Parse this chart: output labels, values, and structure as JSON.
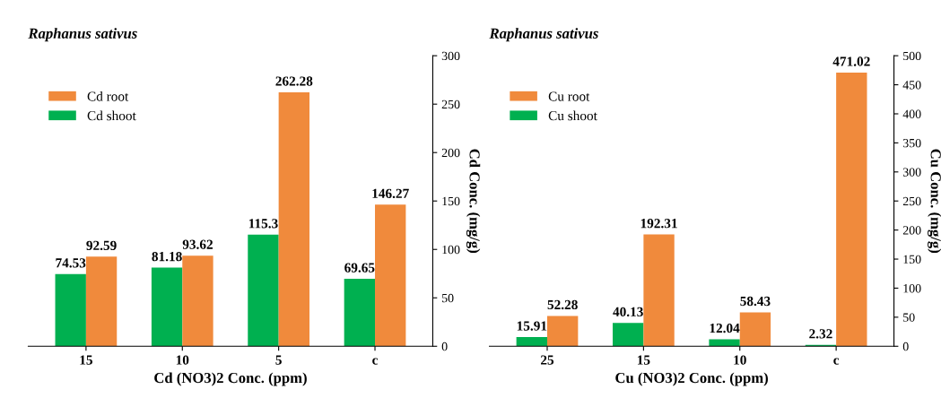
{
  "chart_data": [
    {
      "type": "bar",
      "title": "Raphanus sativus",
      "xlabel": "Cd (NO3)2 Conc. (ppm)",
      "ylabel": "Cd Conc. (mg/g)",
      "categories": [
        "15",
        "10",
        "5",
        "c"
      ],
      "series": [
        {
          "name": "Cd shoot",
          "color": "#00b050",
          "values": [
            74.53,
            81.18,
            115.3,
            69.65
          ]
        },
        {
          "name": "Cd root",
          "color": "#f08a3c",
          "values": [
            92.59,
            93.62,
            262.28,
            146.27
          ]
        }
      ],
      "ylim": [
        0,
        300
      ],
      "yticks": [
        0,
        50,
        100,
        150,
        200,
        250,
        300
      ],
      "data_labels": true,
      "legend": "top left",
      "grid": false
    },
    {
      "type": "bar",
      "title": "Raphanus sativus",
      "xlabel": "Cu (NO3)2 Conc. (ppm)",
      "ylabel": "Cu Conc. (mg/g)",
      "categories": [
        "25",
        "15",
        "10",
        "c"
      ],
      "series": [
        {
          "name": "Cu shoot",
          "color": "#00b050",
          "values": [
            15.91,
            40.13,
            12.04,
            2.32
          ]
        },
        {
          "name": "Cu root",
          "color": "#f08a3c",
          "values": [
            52.28,
            192.31,
            58.43,
            471.02
          ]
        }
      ],
      "ylim": [
        0,
        500
      ],
      "yticks": [
        0,
        50,
        100,
        150,
        200,
        250,
        300,
        350,
        400,
        450,
        500
      ],
      "data_labels": true,
      "legend": "top left",
      "grid": false
    }
  ]
}
